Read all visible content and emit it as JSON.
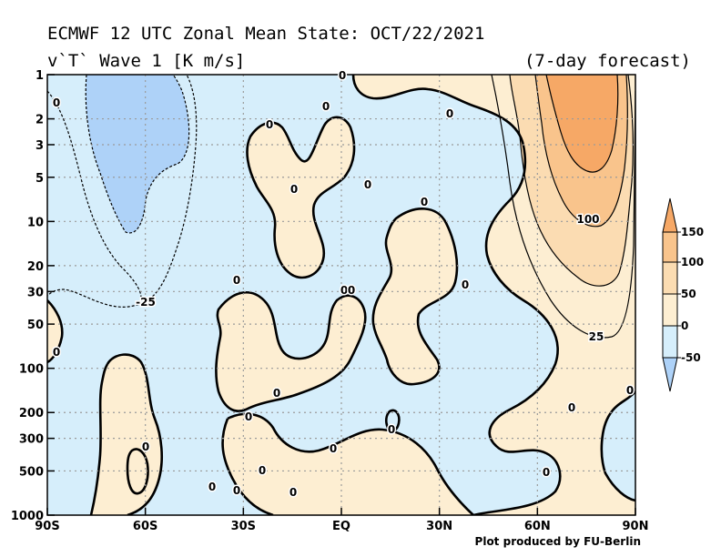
{
  "header": {
    "title_line1": "ECMWF 12 UTC Zonal Mean State: OCT/22/2021",
    "title_line2": "v`T` Wave 1 [K m/s]",
    "forecast_label": "(7-day forecast)"
  },
  "footer": {
    "credit": "Plot produced by FU-Berlin"
  },
  "colors": {
    "negative_shade": "#d6eefb",
    "strong_negative_shade": "#aed2f8",
    "neutral_shade": "#fdeed2",
    "positive_50": "#fbdcb2",
    "positive_100": "#f9c48c",
    "positive_150": "#f6a866",
    "grid": "#9a9a9a"
  },
  "chart_data": {
    "type": "heatmap",
    "plot_kind": "latitude-pressure contour",
    "x_ticks": [
      "90S",
      "60S",
      "30S",
      "EQ",
      "30N",
      "60N",
      "90N"
    ],
    "y_ticks": [
      "1",
      "2",
      "3",
      "5",
      "10",
      "20",
      "30",
      "50",
      "100",
      "200",
      "300",
      "500",
      "1000"
    ],
    "y_scale": "log",
    "xlim": [
      -90,
      90
    ],
    "ylim_hPa": [
      1000,
      1
    ],
    "grid": true,
    "colorbar_levels": [
      "150",
      "100",
      "50",
      "0",
      "-50"
    ],
    "contour_labels": [
      "0",
      "-25",
      "25",
      "100"
    ],
    "features": [
      {
        "region": "60N-90N, 1-30 hPa",
        "max_value": 150
      },
      {
        "region": "70S-60S, 1-10 hPa",
        "min_value": -50
      },
      {
        "region": "90S-50S, 10-50 hPa",
        "value": -25
      }
    ]
  }
}
